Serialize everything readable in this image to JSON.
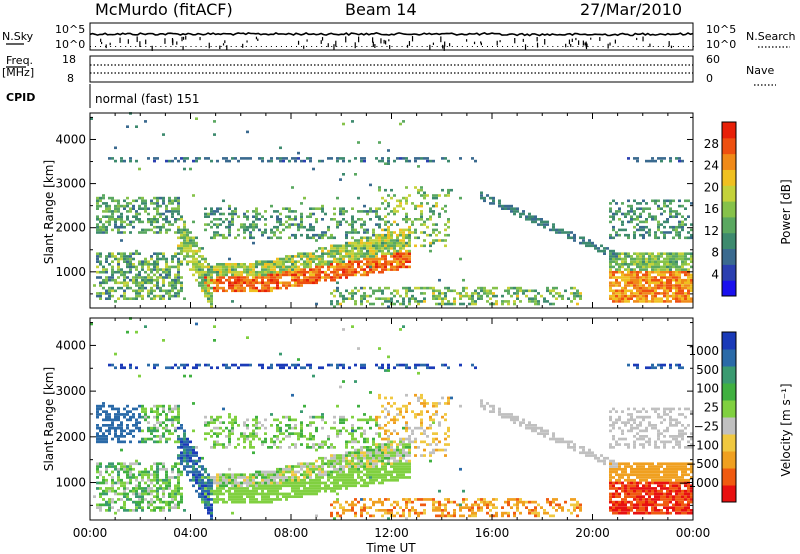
{
  "header": {
    "station": "McMurdo (fitACF)",
    "beam": "Beam 14",
    "date": "27/Mar/2010"
  },
  "nsky_panel": {
    "left_label": "N.Sky",
    "right_label": "N.Search",
    "left_ticks": [
      "10^5",
      "10^0"
    ],
    "right_ticks": [
      "10^5",
      "10^0"
    ]
  },
  "freq_panel": {
    "left_label_line1": "Freq.",
    "left_label_line2": "[MHz]",
    "right_label": "Nave",
    "left_ticks": [
      "18",
      "8"
    ],
    "right_ticks": [
      "60",
      "0"
    ]
  },
  "cpid_panel": {
    "label": "CPID",
    "mode_text": "normal (fast) 151"
  },
  "chart_data": [
    {
      "type": "heatmap",
      "title": "",
      "quantity": "Power",
      "xlabel": "",
      "ylabel": "Slant Range [km]",
      "x_range_hours": [
        0,
        24
      ],
      "ylim": [
        180,
        4600
      ],
      "y_ticks": [
        "1000",
        "2000",
        "3000",
        "4000"
      ],
      "colorbar": {
        "label": "Power [dB]",
        "ticks": [
          "28",
          "24",
          "20",
          "16",
          "12",
          "8",
          "4"
        ],
        "colors": [
          "#1a10ee",
          "#2b3fb0",
          "#3a6a8f",
          "#3d8a6e",
          "#5aa860",
          "#86c24a",
          "#c4d23a",
          "#f0c020",
          "#f08a18",
          "#ee5010",
          "#e82008"
        ]
      },
      "features": [
        {
          "name": "ring at 3500 km",
          "t_start": 0.6,
          "t_end": 15.3,
          "range_km": 3500
        },
        {
          "name": "ring at 3500 km late",
          "t_start": 21.3,
          "t_end": 23.6,
          "range_km": 3500
        },
        {
          "name": "strong echo band",
          "t_start": 3.8,
          "t_end": 12.6,
          "range_km_start": 650,
          "range_km_end": 1500,
          "level_dB": 26
        },
        {
          "name": "evening echo",
          "t_start": 21.0,
          "t_end": 24.0,
          "range_km": 750,
          "level_dB": 24
        },
        {
          "name": "arc",
          "t_start": 15.5,
          "t_end": 21.0,
          "range_km_start": 2700,
          "range_km_end": 1200,
          "level_dB": 8
        }
      ]
    },
    {
      "type": "heatmap",
      "title": "",
      "quantity": "Velocity",
      "xlabel": "Time UT",
      "ylabel": "Slant Range [km]",
      "x_range_hours": [
        0,
        24
      ],
      "x_ticks": [
        "00:00",
        "04:00",
        "08:00",
        "12:00",
        "16:00",
        "20:00",
        "00:00"
      ],
      "ylim": [
        180,
        4600
      ],
      "y_ticks": [
        "1000",
        "2000",
        "3000",
        "4000"
      ],
      "colorbar": {
        "label": "Velocity [m s⁻¹]",
        "ticks": [
          "1000",
          "500",
          "100",
          "25",
          "−25",
          "−100",
          "−500",
          "−1000"
        ],
        "colors": [
          "#e81010",
          "#f05a10",
          "#f0a020",
          "#f0c840",
          "#c0c0c0",
          "#80d040",
          "#40b040",
          "#3a9a70",
          "#2a6aa8",
          "#1a3ab8"
        ]
      }
    }
  ]
}
